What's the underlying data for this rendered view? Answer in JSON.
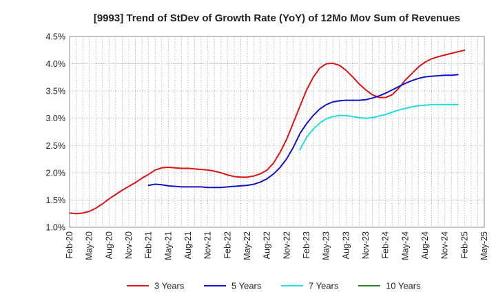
{
  "chart_data": {
    "type": "line",
    "title": "[9993]  Trend of StDev of Growth Rate (YoY) of 12Mo Mov Sum of Revenues",
    "xlabel": "",
    "ylabel": "",
    "ylim": [
      1.0,
      4.5
    ],
    "y_ticks": [
      1.0,
      1.5,
      2.0,
      2.5,
      3.0,
      3.5,
      4.0,
      4.5
    ],
    "y_tick_labels": [
      "1.0%",
      "1.5%",
      "2.0%",
      "2.5%",
      "3.0%",
      "3.5%",
      "4.0%",
      "4.5%"
    ],
    "grid": true,
    "legend_position": "bottom",
    "x_range_months": [
      0,
      63
    ],
    "x_tick_months": [
      0,
      3,
      6,
      9,
      12,
      15,
      18,
      21,
      24,
      27,
      30,
      33,
      36,
      39,
      42,
      45,
      48,
      51,
      54,
      57,
      60,
      63
    ],
    "x_tick_labels": [
      "Feb-20",
      "May-20",
      "Aug-20",
      "Nov-20",
      "Feb-21",
      "May-21",
      "Aug-21",
      "Nov-21",
      "Feb-22",
      "May-22",
      "Aug-22",
      "Nov-22",
      "Feb-23",
      "May-23",
      "Aug-23",
      "Nov-23",
      "Feb-24",
      "May-24",
      "Aug-24",
      "Nov-24",
      "Feb-25",
      "May-25"
    ],
    "series": [
      {
        "name": "3 Years",
        "color": "#dd1111",
        "start_month": 0,
        "values": [
          1.26,
          1.25,
          1.26,
          1.29,
          1.35,
          1.43,
          1.52,
          1.6,
          1.68,
          1.75,
          1.82,
          1.9,
          1.97,
          2.05,
          2.09,
          2.1,
          2.09,
          2.08,
          2.08,
          2.07,
          2.06,
          2.05,
          2.03,
          2.0,
          1.96,
          1.93,
          1.92,
          1.92,
          1.94,
          1.98,
          2.05,
          2.18,
          2.38,
          2.62,
          2.92,
          3.22,
          3.52,
          3.75,
          3.92,
          4.0,
          4.01,
          3.97,
          3.88,
          3.76,
          3.63,
          3.52,
          3.43,
          3.38,
          3.38,
          3.43,
          3.55,
          3.7,
          3.82,
          3.94,
          4.03,
          4.09,
          4.13,
          4.16,
          4.19,
          4.22,
          4.25
        ]
      },
      {
        "name": "5 Years",
        "color": "#1111cc",
        "start_month": 12,
        "values": [
          1.77,
          1.79,
          1.78,
          1.76,
          1.75,
          1.74,
          1.74,
          1.74,
          1.74,
          1.73,
          1.73,
          1.73,
          1.74,
          1.75,
          1.76,
          1.77,
          1.79,
          1.83,
          1.89,
          1.98,
          2.1,
          2.26,
          2.47,
          2.72,
          2.9,
          3.05,
          3.17,
          3.25,
          3.3,
          3.32,
          3.33,
          3.33,
          3.33,
          3.34,
          3.37,
          3.41,
          3.46,
          3.52,
          3.58,
          3.64,
          3.69,
          3.73,
          3.76,
          3.77,
          3.78,
          3.79,
          3.79,
          3.8
        ]
      },
      {
        "name": "7 Years",
        "color": "#22dddd",
        "start_month": 35,
        "values": [
          2.42,
          2.65,
          2.8,
          2.91,
          2.99,
          3.03,
          3.05,
          3.05,
          3.03,
          3.01,
          3.0,
          3.01,
          3.04,
          3.07,
          3.11,
          3.15,
          3.18,
          3.21,
          3.23,
          3.24,
          3.25,
          3.25,
          3.25,
          3.25,
          3.25
        ]
      },
      {
        "name": "10 Years",
        "color": "#228822",
        "start_month": 0,
        "values": []
      }
    ]
  }
}
